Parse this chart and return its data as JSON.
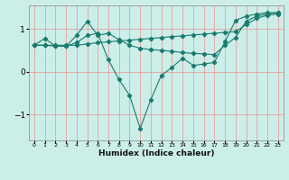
{
  "xlabel": "Humidex (Indice chaleur)",
  "bg_color": "#cceee8",
  "line_color": "#1a7a6e",
  "grid_color": "#e8a0a0",
  "xlim": [
    -0.5,
    23.5
  ],
  "ylim": [
    -1.6,
    1.55
  ],
  "yticks": [
    -1,
    0,
    1
  ],
  "xticks": [
    0,
    1,
    2,
    3,
    4,
    5,
    6,
    7,
    8,
    9,
    10,
    11,
    12,
    13,
    14,
    15,
    16,
    17,
    18,
    19,
    20,
    21,
    22,
    23
  ],
  "line1_x": [
    0,
    1,
    2,
    3,
    4,
    5,
    6,
    7,
    8,
    9,
    10,
    11,
    12,
    13,
    14,
    15,
    16,
    17,
    18,
    19,
    20,
    21,
    22,
    23
  ],
  "line1_y": [
    0.62,
    0.62,
    0.62,
    0.62,
    0.62,
    0.65,
    0.68,
    0.7,
    0.72,
    0.74,
    0.76,
    0.78,
    0.8,
    0.82,
    0.84,
    0.86,
    0.88,
    0.9,
    0.92,
    0.94,
    1.1,
    1.25,
    1.32,
    1.35
  ],
  "line2_x": [
    0,
    1,
    2,
    3,
    4,
    5,
    6,
    7,
    8,
    9,
    10,
    11,
    12,
    13,
    14,
    15,
    16,
    17,
    18,
    19,
    20,
    21,
    22,
    23
  ],
  "line2_y": [
    0.62,
    0.78,
    0.6,
    0.6,
    0.85,
    1.18,
    0.85,
    0.9,
    0.75,
    0.62,
    0.55,
    0.52,
    0.5,
    0.48,
    0.45,
    0.43,
    0.42,
    0.4,
    0.62,
    0.8,
    1.18,
    1.3,
    1.35,
    1.38
  ],
  "line3_x": [
    0,
    1,
    2,
    3,
    4,
    5,
    6,
    7,
    8,
    9,
    10,
    11,
    12,
    13,
    14,
    15,
    16,
    17,
    18,
    19,
    20,
    21,
    22,
    23
  ],
  "line3_y": [
    0.62,
    0.62,
    0.6,
    0.6,
    0.68,
    0.85,
    0.9,
    0.28,
    -0.18,
    -0.55,
    -1.32,
    -0.65,
    -0.08,
    0.1,
    0.32,
    0.15,
    0.18,
    0.22,
    0.7,
    1.2,
    1.3,
    1.35,
    1.38,
    1.38
  ]
}
